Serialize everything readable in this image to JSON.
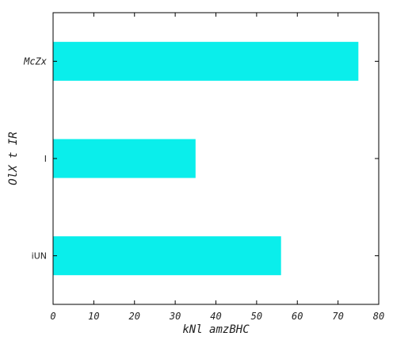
{
  "chart_data": {
    "type": "bar",
    "orientation": "horizontal",
    "categories": [
      "iUN",
      "I",
      "McZx"
    ],
    "values": [
      56,
      35,
      75
    ],
    "xlabel": "kNl amzBHC",
    "ylabel": "OlX t IR",
    "xlim": [
      0,
      80
    ],
    "xticks": [
      0,
      10,
      20,
      30,
      40,
      50,
      60,
      70,
      80
    ],
    "grid": false,
    "bar_color": "#0aeeeb"
  }
}
